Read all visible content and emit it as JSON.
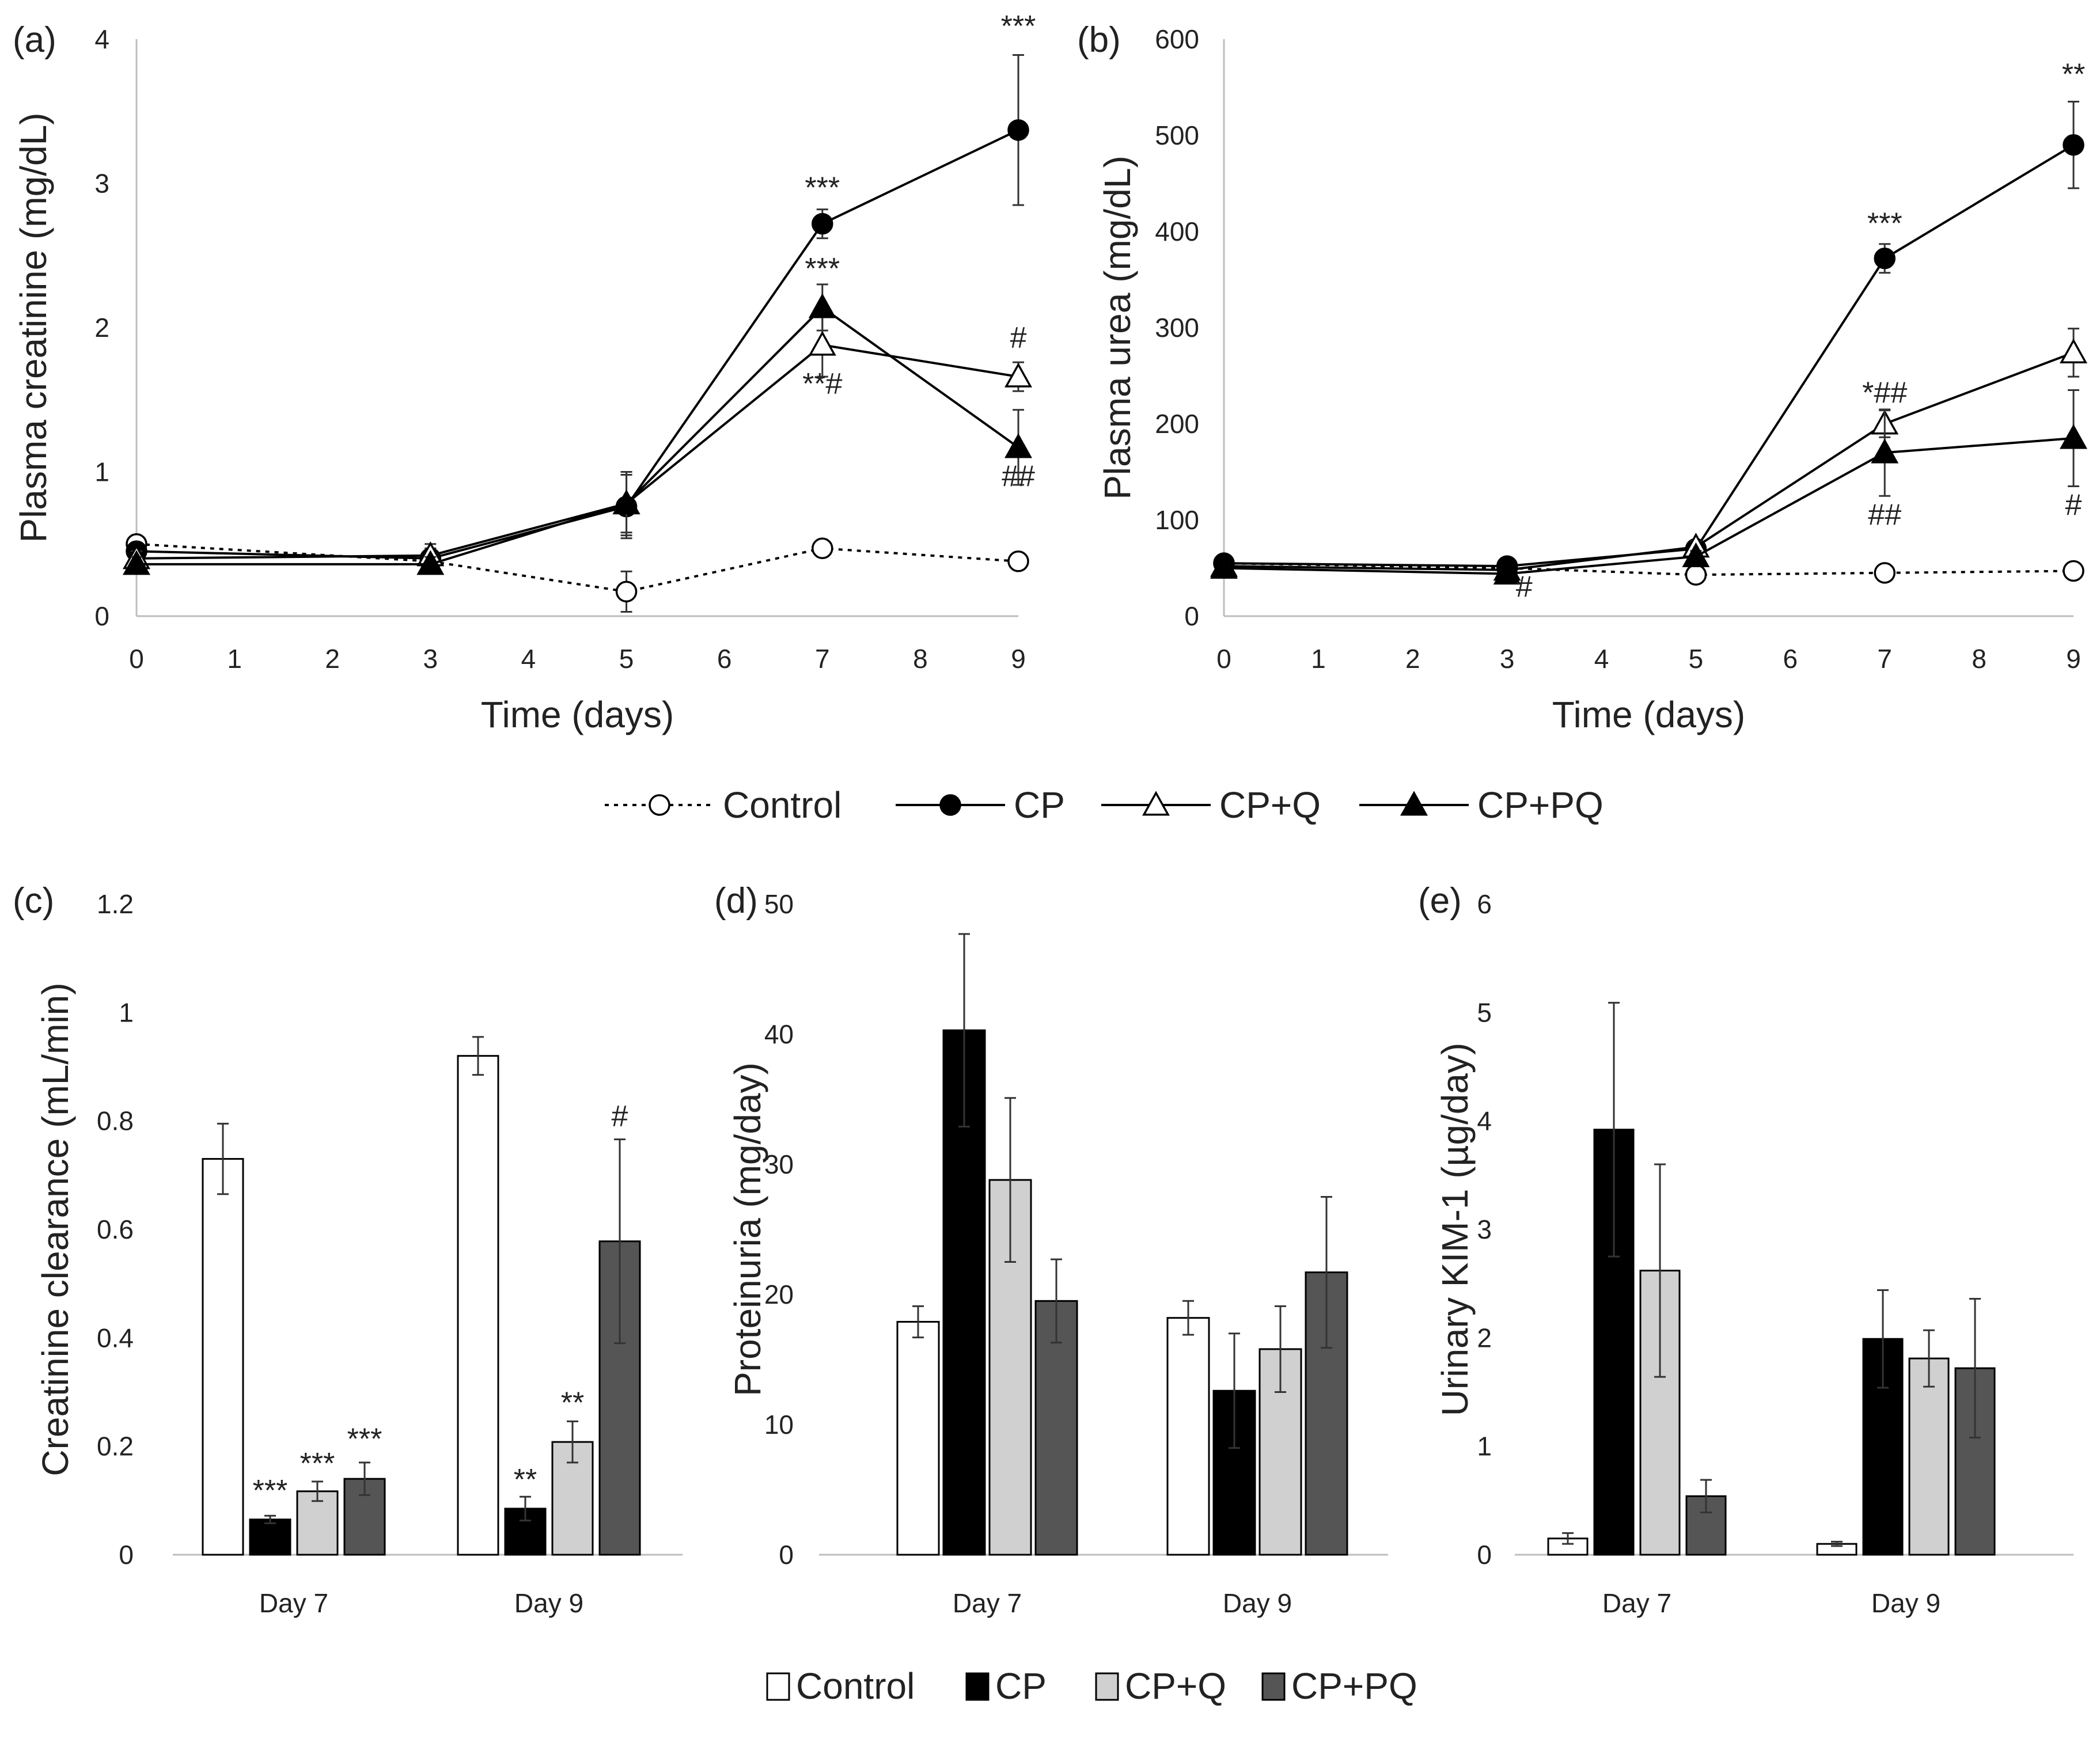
{
  "chart_data": [
    {
      "id": "a",
      "panel_label": "(a)",
      "type": "line",
      "xlabel": "Time (days)",
      "ylabel": "Plasma creatinine (mg/dL)",
      "xlim": [
        0,
        9
      ],
      "ylim": [
        0,
        4
      ],
      "xticks": [
        0,
        1,
        2,
        3,
        4,
        5,
        6,
        7,
        8,
        9
      ],
      "yticks": [
        0,
        1,
        2,
        3,
        4
      ],
      "series": [
        {
          "name": "Control",
          "marker": "circle-open",
          "dash": "dotted",
          "x": [
            0,
            3,
            5,
            7,
            9
          ],
          "y": [
            0.5,
            0.38,
            0.17,
            0.47,
            0.38
          ],
          "err": [
            0.05,
            0.04,
            0.14,
            0.03,
            0.03
          ]
        },
        {
          "name": "CP",
          "marker": "circle-filled",
          "dash": "solid",
          "x": [
            0,
            3,
            5,
            7,
            9
          ],
          "y": [
            0.45,
            0.4,
            0.76,
            2.72,
            3.37
          ],
          "err": [
            0.05,
            0.07,
            0.22,
            0.1,
            0.52
          ]
        },
        {
          "name": "CP+Q",
          "marker": "triangle-open",
          "dash": "solid",
          "x": [
            0,
            3,
            5,
            7,
            9
          ],
          "y": [
            0.4,
            0.42,
            0.78,
            1.88,
            1.66
          ],
          "err": [
            0.05,
            0.08,
            0.22,
            0.22,
            0.1
          ]
        },
        {
          "name": "CP+PQ",
          "marker": "triangle-filled",
          "dash": "solid",
          "x": [
            0,
            3,
            5,
            7,
            9
          ],
          "y": [
            0.36,
            0.36,
            0.78,
            2.14,
            1.17
          ],
          "err": [
            0.05,
            0.05,
            0.2,
            0.16,
            0.26
          ]
        }
      ],
      "annotations": [
        {
          "text": "***",
          "x": 9,
          "y": 4.02
        },
        {
          "text": "***",
          "x": 7,
          "y": 2.9
        },
        {
          "text": "***",
          "x": 7,
          "y": 2.34
        },
        {
          "text": "#",
          "x": 9,
          "y": 1.86
        },
        {
          "text": "**#",
          "x": 7,
          "y": 1.54
        },
        {
          "text": "##",
          "x": 9,
          "y": 0.9
        }
      ]
    },
    {
      "id": "b",
      "panel_label": "(b)",
      "type": "line",
      "xlabel": "Time (days)",
      "ylabel": "Plasma urea (mg/dL)",
      "xlim": [
        0,
        9
      ],
      "ylim": [
        0,
        600
      ],
      "xticks": [
        0,
        1,
        2,
        3,
        4,
        5,
        6,
        7,
        8,
        9
      ],
      "yticks": [
        0,
        100,
        200,
        300,
        400,
        500,
        600
      ],
      "series": [
        {
          "name": "Control",
          "marker": "circle-open",
          "dash": "dotted",
          "x": [
            0,
            3,
            5,
            7,
            9
          ],
          "y": [
            55,
            50,
            43,
            45,
            47
          ],
          "err": [
            3,
            3,
            3,
            3,
            3
          ]
        },
        {
          "name": "CP",
          "marker": "circle-filled",
          "dash": "solid",
          "x": [
            0,
            3,
            5,
            7,
            9
          ],
          "y": [
            55,
            52,
            70,
            372,
            490
          ],
          "err": [
            4,
            4,
            6,
            15,
            45
          ]
        },
        {
          "name": "CP+Q",
          "marker": "triangle-open",
          "dash": "solid",
          "x": [
            0,
            3,
            5,
            7,
            9
          ],
          "y": [
            52,
            48,
            72,
            200,
            274
          ],
          "err": [
            4,
            4,
            6,
            14,
            25
          ]
        },
        {
          "name": "CP+PQ",
          "marker": "triangle-filled",
          "dash": "solid",
          "x": [
            0,
            3,
            5,
            7,
            9
          ],
          "y": [
            50,
            44,
            62,
            170,
            185
          ],
          "err": [
            4,
            4,
            6,
            45,
            50
          ]
        }
      ],
      "annotations": [
        {
          "text": "**",
          "x": 9,
          "y": 553
        },
        {
          "text": "***",
          "x": 7,
          "y": 398
        },
        {
          "text": "*##",
          "x": 7,
          "y": 222
        },
        {
          "text": "##",
          "x": 7,
          "y": 95
        },
        {
          "text": "#",
          "x": 9,
          "y": 105
        },
        {
          "text": "#",
          "x": 3.18,
          "y": 20
        }
      ]
    },
    {
      "id": "c",
      "panel_label": "(c)",
      "type": "bar",
      "categories": [
        "Day 7",
        "Day 9"
      ],
      "ylabel": "Creatinine clearance (mL/min)",
      "ylim": [
        0,
        1.2
      ],
      "yticks": [
        0,
        0.2,
        0.4,
        0.6,
        0.8,
        1,
        1.2
      ],
      "series": [
        {
          "name": "Control",
          "values": [
            0.73,
            0.92
          ],
          "err": [
            0.065,
            0.035
          ]
        },
        {
          "name": "CP",
          "values": [
            0.065,
            0.085
          ],
          "err": [
            0.007,
            0.022
          ]
        },
        {
          "name": "CP+Q",
          "values": [
            0.117,
            0.208
          ],
          "err": [
            0.018,
            0.038
          ]
        },
        {
          "name": "CP+PQ",
          "values": [
            0.14,
            0.578
          ],
          "err": [
            0.03,
            0.188
          ]
        }
      ],
      "annotations": [
        {
          "text": "***",
          "category": 0,
          "series": 1,
          "y": 0.1
        },
        {
          "text": "***",
          "category": 0,
          "series": 2,
          "y": 0.15
        },
        {
          "text": "***",
          "category": 0,
          "series": 3,
          "y": 0.195
        },
        {
          "text": "**",
          "category": 1,
          "series": 1,
          "y": 0.12
        },
        {
          "text": "**",
          "category": 1,
          "series": 2,
          "y": 0.262
        },
        {
          "text": "#",
          "category": 1,
          "series": 3,
          "y": 0.79
        }
      ]
    },
    {
      "id": "d",
      "panel_label": "(d)",
      "type": "bar",
      "categories": [
        "Day 7",
        "Day 9"
      ],
      "ylabel": "Proteinuria (mg/day)",
      "ylim": [
        0,
        50
      ],
      "yticks": [
        0,
        10,
        20,
        30,
        40,
        50
      ],
      "series": [
        {
          "name": "Control",
          "values": [
            17.9,
            18.2
          ],
          "err": [
            1.2,
            1.3
          ]
        },
        {
          "name": "CP",
          "values": [
            40.3,
            12.6
          ],
          "err": [
            7.4,
            4.4
          ]
        },
        {
          "name": "CP+Q",
          "values": [
            28.8,
            15.8
          ],
          "err": [
            6.3,
            3.3
          ]
        },
        {
          "name": "CP+PQ",
          "values": [
            19.5,
            21.7
          ],
          "err": [
            3.2,
            5.8
          ]
        }
      ]
    },
    {
      "id": "e",
      "panel_label": "(e)",
      "type": "bar",
      "categories": [
        "Day 7",
        "Day 9"
      ],
      "ylabel": "Urinary KIM-1 (µg/day)",
      "ylim": [
        0,
        6
      ],
      "yticks": [
        0,
        1,
        2,
        3,
        4,
        5,
        6
      ],
      "series": [
        {
          "name": "Control",
          "values": [
            0.15,
            0.1
          ],
          "err": [
            0.05,
            0.02
          ]
        },
        {
          "name": "CP",
          "values": [
            3.92,
            1.99
          ],
          "err": [
            1.17,
            0.45
          ]
        },
        {
          "name": "CP+Q",
          "values": [
            2.62,
            1.81
          ],
          "err": [
            0.98,
            0.26
          ]
        },
        {
          "name": "CP+PQ",
          "values": [
            0.54,
            1.72
          ],
          "err": [
            0.15,
            0.64
          ]
        }
      ]
    }
  ],
  "line_legend": [
    {
      "name": "Control",
      "marker": "circle-open",
      "dash": "dotted"
    },
    {
      "name": "CP",
      "marker": "circle-filled",
      "dash": "solid"
    },
    {
      "name": "CP+Q",
      "marker": "triangle-open",
      "dash": "solid"
    },
    {
      "name": "CP+PQ",
      "marker": "triangle-filled",
      "dash": "solid"
    }
  ],
  "bar_legend": [
    {
      "name": "Control",
      "color": "#ffffff"
    },
    {
      "name": "CP",
      "color": "#000000"
    },
    {
      "name": "CP+Q",
      "color": "#d0d0d0"
    },
    {
      "name": "CP+PQ",
      "color": "#555555"
    }
  ]
}
